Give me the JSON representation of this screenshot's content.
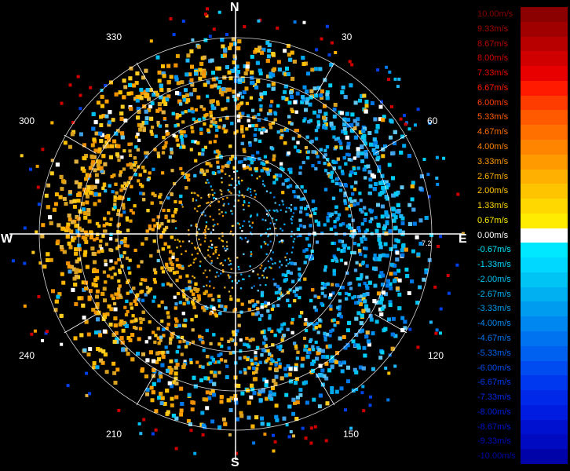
{
  "compass": {
    "north": "N",
    "east": "E",
    "south": "S",
    "west": "W",
    "bearings": [
      "30",
      "60",
      "120",
      "150",
      "210",
      "240",
      "300",
      "330"
    ],
    "range_label": "7.2"
  },
  "legend": [
    {
      "label": "10.00m/s",
      "color": "#8b0000"
    },
    {
      "label": "9.33m/s",
      "color": "#a00000"
    },
    {
      "label": "8.67m/s",
      "color": "#b80000"
    },
    {
      "label": "8.00m/s",
      "color": "#d00000"
    },
    {
      "label": "7.33m/s",
      "color": "#e80000"
    },
    {
      "label": "6.67m/s",
      "color": "#ff1a00"
    },
    {
      "label": "6.00m/s",
      "color": "#ff3c00"
    },
    {
      "label": "5.33m/s",
      "color": "#ff5a00"
    },
    {
      "label": "4.67m/s",
      "color": "#ff7000"
    },
    {
      "label": "4.00m/s",
      "color": "#ff8400"
    },
    {
      "label": "3.33m/s",
      "color": "#ff9a00"
    },
    {
      "label": "2.67m/s",
      "color": "#ffb000"
    },
    {
      "label": "2.00m/s",
      "color": "#ffc400"
    },
    {
      "label": "1.33m/s",
      "color": "#ffd800"
    },
    {
      "label": "0.67m/s",
      "color": "#ffec00"
    },
    {
      "label": "0.00m/s",
      "color": "#ffffff"
    },
    {
      "label": "-0.67m/s",
      "color": "#00e8ff"
    },
    {
      "label": "-1.33m/s",
      "color": "#00d8ff"
    },
    {
      "label": "-2.00m/s",
      "color": "#00c4f4"
    },
    {
      "label": "-2.67m/s",
      "color": "#00b0f0"
    },
    {
      "label": "-3.33m/s",
      "color": "#009cf0"
    },
    {
      "label": "-4.00m/s",
      "color": "#0088f0"
    },
    {
      "label": "-4.67m/s",
      "color": "#0074f0"
    },
    {
      "label": "-5.33m/s",
      "color": "#0060f0"
    },
    {
      "label": "-6.00m/s",
      "color": "#004cf0"
    },
    {
      "label": "-6.67m/s",
      "color": "#0038f0"
    },
    {
      "label": "-7.33m/s",
      "color": "#0028e8"
    },
    {
      "label": "-8.00m/s",
      "color": "#001ce0"
    },
    {
      "label": "-8.67m/s",
      "color": "#0012d0"
    },
    {
      "label": "-9.33m/s",
      "color": "#000ac0"
    },
    {
      "label": "-10.00m/s",
      "color": "#0004a8"
    }
  ],
  "palette": {
    "warm": [
      "#ffa000",
      "#ffb400",
      "#e8a000",
      "#ffc000",
      "#f09000",
      "#d8a020",
      "#ffcc20",
      "#e0b040"
    ],
    "cool": [
      "#00a8f0",
      "#00c0f0",
      "#0090f0",
      "#20b8f8",
      "#00d0f8",
      "#40a0e8",
      "#0078e8",
      "#60c8f0"
    ],
    "white": "#ffffff",
    "grid": "#ffffff"
  }
}
